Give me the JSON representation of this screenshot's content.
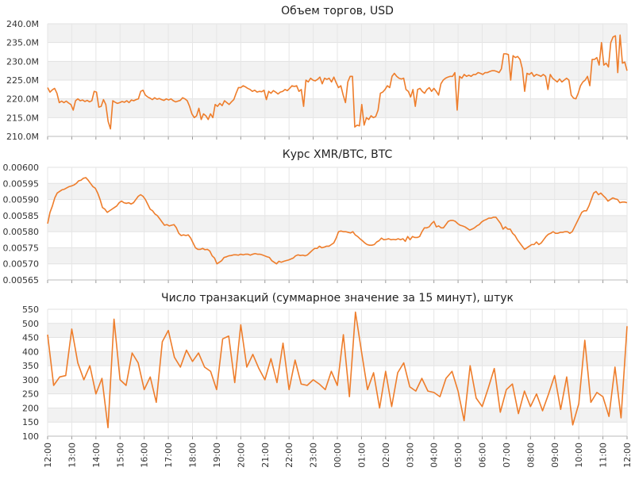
{
  "chart_data": [
    {
      "type": "line",
      "title": "Объем торгов, USD",
      "ylim": [
        210,
        240
      ],
      "yticks": [
        210,
        215,
        220,
        225,
        230,
        235,
        240
      ],
      "ytick_labels": [
        "210.0M",
        "215.0M",
        "220.0M",
        "225.0M",
        "230.0M",
        "235.0M",
        "240.0M"
      ],
      "grid": "alternating horizontal bands",
      "series_color": "#ee7d2b",
      "y": [
        223.0,
        221.8,
        222.4,
        222.8,
        221.5,
        219.0,
        219.4,
        219.0,
        219.4,
        218.9,
        218.5,
        217.0,
        219.5,
        220.0,
        219.5,
        219.7,
        219.3,
        219.6,
        219.2,
        219.5,
        222.0,
        221.8,
        217.8,
        218.0,
        219.8,
        218.5,
        214.0,
        212.0,
        219.5,
        219.1,
        218.8,
        219.0,
        219.3,
        219.1,
        219.5,
        219.0,
        219.7,
        219.5,
        219.8,
        220.0,
        222.0,
        222.3,
        221.0,
        220.5,
        220.2,
        219.8,
        220.3,
        219.9,
        220.1,
        219.8,
        219.6,
        220.0,
        219.7,
        220.0,
        219.5,
        219.2,
        219.4,
        219.6,
        220.3,
        220.0,
        219.5,
        218.0,
        216.0,
        215.0,
        215.5,
        217.5,
        214.5,
        216.0,
        215.5,
        214.5,
        216.0,
        215.0,
        218.5,
        218.0,
        218.8,
        218.2,
        219.5,
        219.0,
        218.5,
        219.2,
        219.8,
        221.5,
        223.0,
        223.0,
        223.5,
        223.2,
        222.8,
        222.5,
        222.0,
        222.3,
        221.8,
        222.0,
        221.9,
        222.3,
        219.8,
        222.0,
        221.5,
        222.2,
        221.8,
        221.3,
        221.8,
        222.0,
        222.5,
        222.2,
        222.8,
        223.5,
        223.3,
        223.5,
        222.0,
        222.5,
        218.0,
        225.0,
        224.5,
        225.5,
        225.0,
        224.8,
        225.2,
        225.8,
        224.0,
        225.5,
        225.2,
        225.5,
        224.5,
        225.8,
        224.3,
        223.0,
        223.5,
        221.0,
        219.0,
        224.5,
        226.0,
        226.0,
        212.5,
        213.0,
        212.8,
        218.5,
        213.0,
        215.0,
        214.5,
        215.5,
        215.0,
        215.3,
        217.0,
        221.5,
        221.8,
        222.5,
        223.5,
        223.0,
        226.0,
        226.8,
        226.0,
        225.5,
        225.3,
        225.5,
        222.5,
        222.0,
        220.5,
        222.5,
        218.0,
        222.5,
        222.8,
        222.0,
        221.5,
        222.5,
        223.0,
        222.0,
        222.8,
        222.0,
        221.0,
        224.0,
        225.0,
        225.5,
        225.8,
        226.0,
        226.0,
        227.0,
        217.0,
        226.0,
        225.5,
        226.5,
        226.0,
        226.3,
        226.0,
        226.5,
        226.5,
        227.0,
        226.8,
        226.5,
        227.0,
        227.0,
        227.3,
        227.5,
        227.5,
        227.3,
        227.0,
        228.0,
        232.0,
        232.0,
        231.8,
        225.0,
        231.5,
        231.0,
        231.3,
        230.5,
        228.0,
        222.0,
        226.8,
        226.5,
        227.0,
        226.0,
        226.5,
        226.3,
        226.0,
        226.5,
        226.0,
        222.5,
        226.5,
        225.5,
        225.0,
        224.5,
        225.3,
        224.5,
        225.0,
        225.5,
        225.0,
        221.0,
        220.2,
        220.0,
        221.5,
        223.5,
        224.5,
        225.0,
        226.0,
        223.5,
        230.5,
        230.5,
        231.0,
        229.0,
        235.0,
        229.0,
        229.5,
        228.5,
        235.0,
        236.5,
        236.8,
        227.0,
        237.0,
        229.5,
        229.8,
        227.5
      ]
    },
    {
      "type": "line",
      "title": "Курс XMR/BTC, BTC",
      "ylim": [
        0.00565,
        0.006
      ],
      "yticks": [
        0.00565,
        0.0057,
        0.00575,
        0.0058,
        0.00585,
        0.0059,
        0.00595,
        0.006
      ],
      "ytick_labels": [
        "0.00565",
        "0.00570",
        "0.00575",
        "0.00580",
        "0.00585",
        "0.00590",
        "0.00595",
        "0.00600"
      ],
      "grid": "alternating horizontal bands",
      "series_color": "#ee7d2b",
      "y": [
        0.005825,
        0.00586,
        0.00588,
        0.005905,
        0.00592,
        0.005925,
        0.00593,
        0.005932,
        0.005936,
        0.00594,
        0.005942,
        0.005945,
        0.00595,
        0.005958,
        0.00596,
        0.005966,
        0.005968,
        0.00596,
        0.00595,
        0.00594,
        0.005935,
        0.00592,
        0.0059,
        0.005875,
        0.00587,
        0.00586,
        0.005865,
        0.00587,
        0.005875,
        0.00588,
        0.00589,
        0.005895,
        0.00589,
        0.005888,
        0.00589,
        0.005886,
        0.00589,
        0.0059,
        0.00591,
        0.005915,
        0.00591,
        0.0059,
        0.005885,
        0.00587,
        0.005865,
        0.005855,
        0.00585,
        0.00584,
        0.00583,
        0.00582,
        0.005822,
        0.005818,
        0.00582,
        0.005822,
        0.005812,
        0.005795,
        0.005788,
        0.00579,
        0.005788,
        0.00579,
        0.00578,
        0.005765,
        0.00575,
        0.005745,
        0.005745,
        0.005748,
        0.005744,
        0.005745,
        0.00574,
        0.005725,
        0.005718,
        0.0057,
        0.005705,
        0.00571,
        0.00572,
        0.005722,
        0.005725,
        0.005726,
        0.005728,
        0.005728,
        0.005727,
        0.00573,
        0.005728,
        0.00573,
        0.00573,
        0.005727,
        0.00573,
        0.005732,
        0.00573,
        0.00573,
        0.005728,
        0.005725,
        0.005722,
        0.00572,
        0.00571,
        0.005705,
        0.0057,
        0.005708,
        0.005705,
        0.005708,
        0.00571,
        0.005712,
        0.005715,
        0.005718,
        0.005725,
        0.005728,
        0.005726,
        0.005727,
        0.005725,
        0.005728,
        0.005735,
        0.005742,
        0.005748,
        0.005748,
        0.005755,
        0.00575,
        0.005752,
        0.005755,
        0.005755,
        0.00576,
        0.005765,
        0.00578,
        0.0058,
        0.005802,
        0.0058,
        0.0058,
        0.005798,
        0.005796,
        0.0058,
        0.00579,
        0.005785,
        0.005778,
        0.005772,
        0.005765,
        0.00576,
        0.005758,
        0.005758,
        0.00576,
        0.005768,
        0.005772,
        0.00578,
        0.005775,
        0.005776,
        0.005778,
        0.005775,
        0.005776,
        0.005775,
        0.005778,
        0.005775,
        0.005778,
        0.00577,
        0.005785,
        0.005775,
        0.005785,
        0.005782,
        0.005782,
        0.005785,
        0.0058,
        0.005812,
        0.005812,
        0.005815,
        0.005825,
        0.005832,
        0.005815,
        0.005818,
        0.005812,
        0.005812,
        0.005822,
        0.005832,
        0.005835,
        0.005835,
        0.005832,
        0.005825,
        0.00582,
        0.005818,
        0.005815,
        0.00581,
        0.005805,
        0.005808,
        0.005812,
        0.005818,
        0.005822,
        0.00583,
        0.005835,
        0.005838,
        0.005842,
        0.005842,
        0.005845,
        0.005845,
        0.005835,
        0.005825,
        0.005808,
        0.005815,
        0.005808,
        0.005808,
        0.005795,
        0.005788,
        0.005775,
        0.005765,
        0.005755,
        0.005745,
        0.00575,
        0.005755,
        0.00576,
        0.00576,
        0.005768,
        0.00576,
        0.005765,
        0.005775,
        0.005785,
        0.005792,
        0.005795,
        0.0058,
        0.005795,
        0.005795,
        0.005798,
        0.005798,
        0.0058,
        0.0058,
        0.005795,
        0.0058,
        0.005815,
        0.00583,
        0.005845,
        0.00586,
        0.005865,
        0.005865,
        0.00588,
        0.0059,
        0.00592,
        0.005925,
        0.005915,
        0.00592,
        0.005912,
        0.005905,
        0.005895,
        0.0059,
        0.005905,
        0.005902,
        0.0059,
        0.00589,
        0.005892,
        0.005892,
        0.00589
      ]
    },
    {
      "type": "line",
      "title": "Число транзакций (суммарное значение за 15 минут), штук",
      "ylim": [
        100,
        550
      ],
      "yticks": [
        100,
        150,
        200,
        250,
        300,
        350,
        400,
        450,
        500,
        550
      ],
      "ytick_labels": [
        "100",
        "150",
        "200",
        "250",
        "300",
        "350",
        "400",
        "450",
        "500",
        "550"
      ],
      "x_tick_labels": [
        "12:00",
        "13:00",
        "14:00",
        "15:00",
        "16:00",
        "17:00",
        "18:00",
        "19:00",
        "20:00",
        "21:00",
        "22:00",
        "23:00",
        "00:00",
        "01:00",
        "02:00",
        "03:00",
        "04:00",
        "05:00",
        "06:00",
        "07:00",
        "08:00",
        "09:00",
        "10:00",
        "11:00",
        "12:00"
      ],
      "grid": "alternating horizontal bands",
      "series_color": "#ee7d2b",
      "y": [
        460,
        280,
        310,
        315,
        480,
        360,
        300,
        350,
        250,
        305,
        130,
        515,
        300,
        280,
        395,
        360,
        265,
        310,
        220,
        435,
        475,
        380,
        345,
        405,
        365,
        395,
        345,
        330,
        265,
        445,
        455,
        290,
        495,
        345,
        390,
        340,
        300,
        375,
        290,
        430,
        265,
        370,
        285,
        280,
        300,
        285,
        265,
        330,
        280,
        460,
        240,
        540,
        400,
        265,
        325,
        200,
        330,
        205,
        325,
        360,
        275,
        260,
        305,
        260,
        255,
        240,
        305,
        330,
        260,
        155,
        350,
        235,
        205,
        270,
        340,
        185,
        265,
        285,
        180,
        260,
        205,
        250,
        190,
        250,
        315,
        195,
        310,
        140,
        215,
        440,
        220,
        255,
        240,
        170,
        345,
        165,
        490
      ]
    }
  ]
}
